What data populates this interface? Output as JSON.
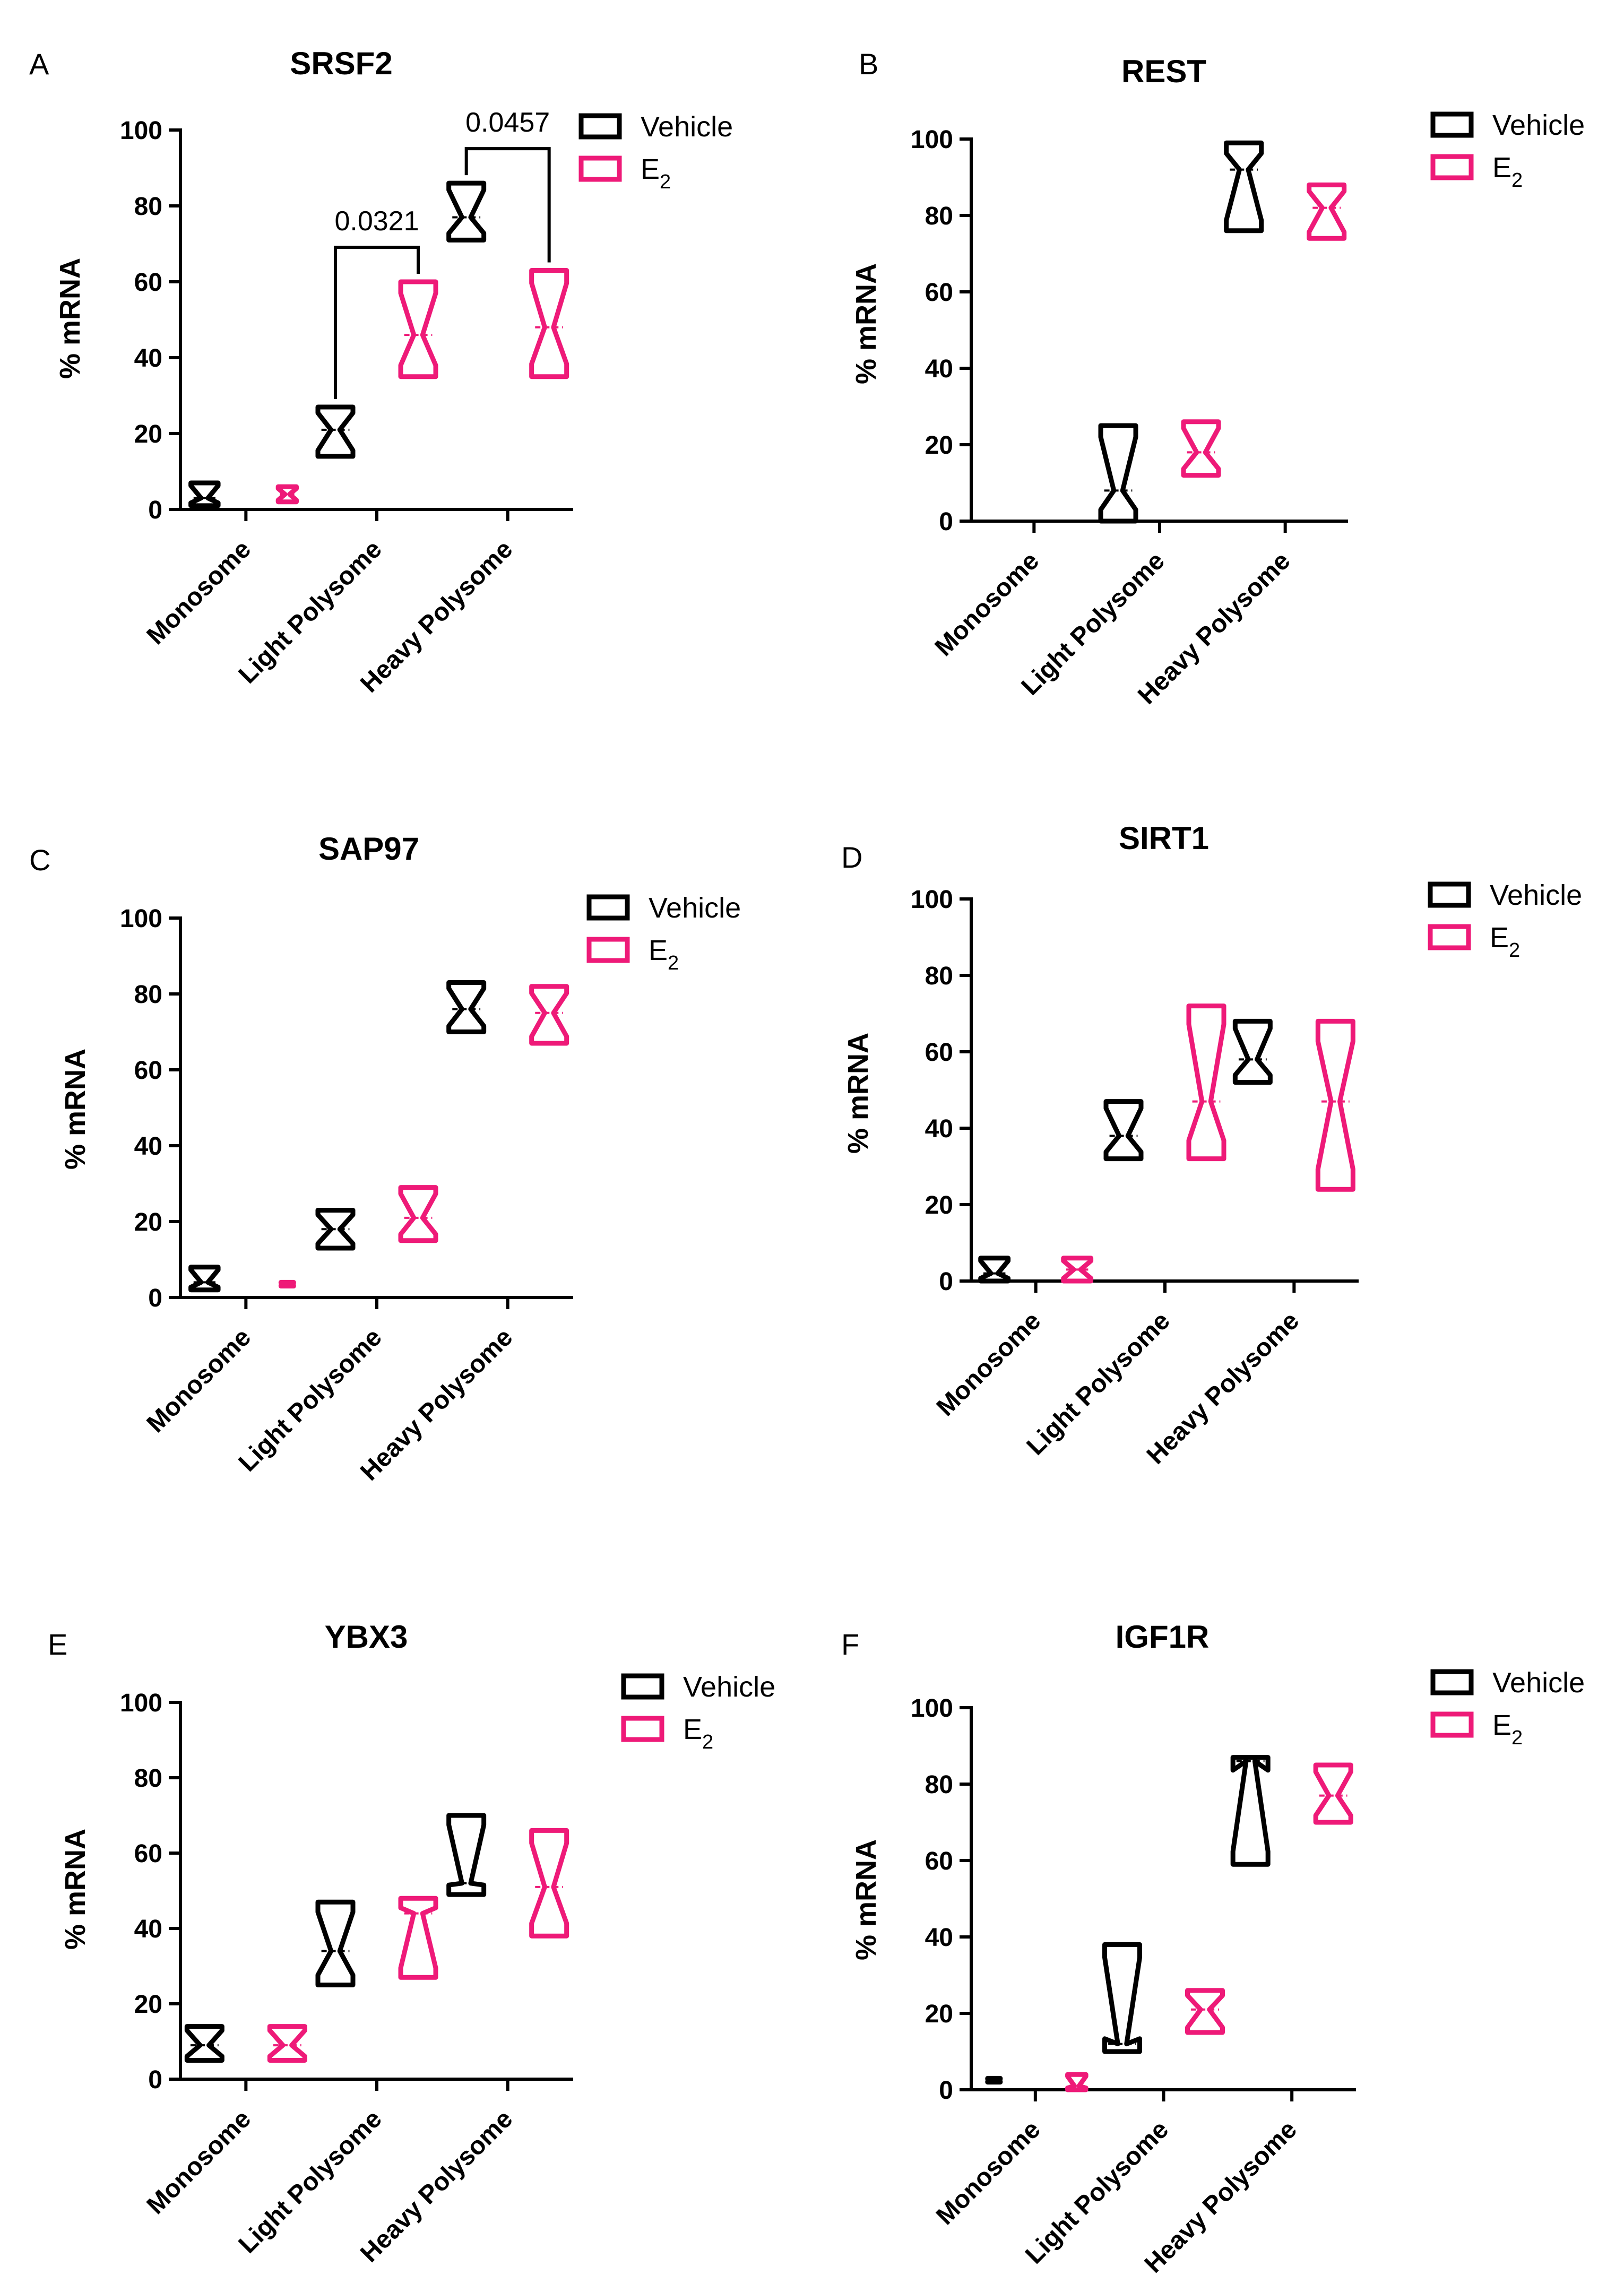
{
  "colors": {
    "vehicle": "#000000",
    "e2": "#ee1a78"
  },
  "legend": {
    "vehicle_label": "Vehicle",
    "e2_base": "E",
    "e2_sub": "2"
  },
  "chart_data": [
    {
      "type": "violin",
      "panel": "A",
      "title": "SRSF2",
      "ylabel": "% mRNA",
      "ylim": [
        0,
        100
      ],
      "yticks": [
        0,
        20,
        40,
        60,
        80,
        100
      ],
      "categories": [
        "Monosome",
        "Light Polysome",
        "Heavy Polysome"
      ],
      "series": [
        {
          "name": "Vehicle",
          "min": [
            1,
            14,
            71
          ],
          "max": [
            7,
            27,
            86
          ],
          "median": [
            3,
            21,
            77
          ]
        },
        {
          "name": "E2",
          "min": [
            2,
            35,
            35
          ],
          "max": [
            6,
            60,
            63
          ],
          "median": [
            4,
            46,
            48
          ]
        }
      ],
      "annotations": [
        {
          "category": "Light Polysome",
          "text": "0.0321"
        },
        {
          "category": "Heavy Polysome",
          "text": "0.0457"
        }
      ]
    },
    {
      "type": "violin",
      "panel": "B",
      "title": "REST",
      "ylabel": "% mRNA",
      "ylim": [
        0,
        100
      ],
      "yticks": [
        0,
        20,
        40,
        60,
        80,
        100
      ],
      "categories": [
        "Monosome",
        "Light Polysome",
        "Heavy Polysome"
      ],
      "series": [
        {
          "name": "Vehicle",
          "min": [
            null,
            0,
            76
          ],
          "max": [
            null,
            25,
            99
          ],
          "median": [
            null,
            8,
            92
          ]
        },
        {
          "name": "E2",
          "min": [
            null,
            12,
            74
          ],
          "max": [
            null,
            26,
            88
          ],
          "median": [
            null,
            18,
            82
          ]
        }
      ],
      "annotations": []
    },
    {
      "type": "violin",
      "panel": "C",
      "title": "SAP97",
      "ylabel": "% mRNA",
      "ylim": [
        0,
        100
      ],
      "yticks": [
        0,
        20,
        40,
        60,
        80,
        100
      ],
      "categories": [
        "Monosome",
        "Light Polysome",
        "Heavy Polysome"
      ],
      "series": [
        {
          "name": "Vehicle",
          "min": [
            2,
            13,
            70
          ],
          "max": [
            8,
            23,
            83
          ],
          "median": [
            4,
            18,
            76
          ]
        },
        {
          "name": "E2",
          "min": [
            3,
            15,
            67
          ],
          "max": [
            4,
            29,
            82
          ],
          "median": [
            3.5,
            21,
            75
          ]
        }
      ],
      "annotations": []
    },
    {
      "type": "violin",
      "panel": "D",
      "title": "SIRT1",
      "ylabel": "% mRNA",
      "ylim": [
        0,
        100
      ],
      "yticks": [
        0,
        20,
        40,
        60,
        80,
        100
      ],
      "categories": [
        "Monosome",
        "Light Polysome",
        "Heavy Polysome"
      ],
      "series": [
        {
          "name": "Vehicle",
          "min": [
            0,
            32,
            52
          ],
          "max": [
            6,
            47,
            68
          ],
          "median": [
            2,
            38,
            58
          ]
        },
        {
          "name": "E2",
          "min": [
            0,
            32,
            24
          ],
          "max": [
            6,
            72,
            68
          ],
          "median": [
            3,
            47,
            47
          ]
        }
      ],
      "annotations": []
    },
    {
      "type": "violin",
      "panel": "E",
      "title": "YBX3",
      "ylabel": "% mRNA",
      "ylim": [
        0,
        100
      ],
      "yticks": [
        0,
        20,
        40,
        60,
        80,
        100
      ],
      "categories": [
        "Monosome",
        "Light Polysome",
        "Heavy Polysome"
      ],
      "series": [
        {
          "name": "Vehicle",
          "min": [
            5,
            25,
            49
          ],
          "max": [
            14,
            47,
            70
          ],
          "median": [
            9,
            34,
            52
          ]
        },
        {
          "name": "E2",
          "min": [
            5,
            27,
            38
          ],
          "max": [
            14,
            48,
            66
          ],
          "median": [
            9,
            44,
            51
          ]
        }
      ],
      "annotations": []
    },
    {
      "type": "violin",
      "panel": "F",
      "title": "IGF1R",
      "ylabel": "% mRNA",
      "ylim": [
        0,
        100
      ],
      "yticks": [
        0,
        20,
        40,
        60,
        80,
        100
      ],
      "categories": [
        "Monosome",
        "Light Polysome",
        "Heavy Polysome"
      ],
      "series": [
        {
          "name": "Vehicle",
          "min": [
            2,
            10,
            59
          ],
          "max": [
            3,
            38,
            87
          ],
          "median": [
            2.5,
            12,
            86
          ]
        },
        {
          "name": "E2",
          "min": [
            0,
            15,
            70
          ],
          "max": [
            4,
            26,
            85
          ],
          "median": [
            1,
            21,
            77
          ]
        }
      ],
      "annotations": []
    }
  ]
}
